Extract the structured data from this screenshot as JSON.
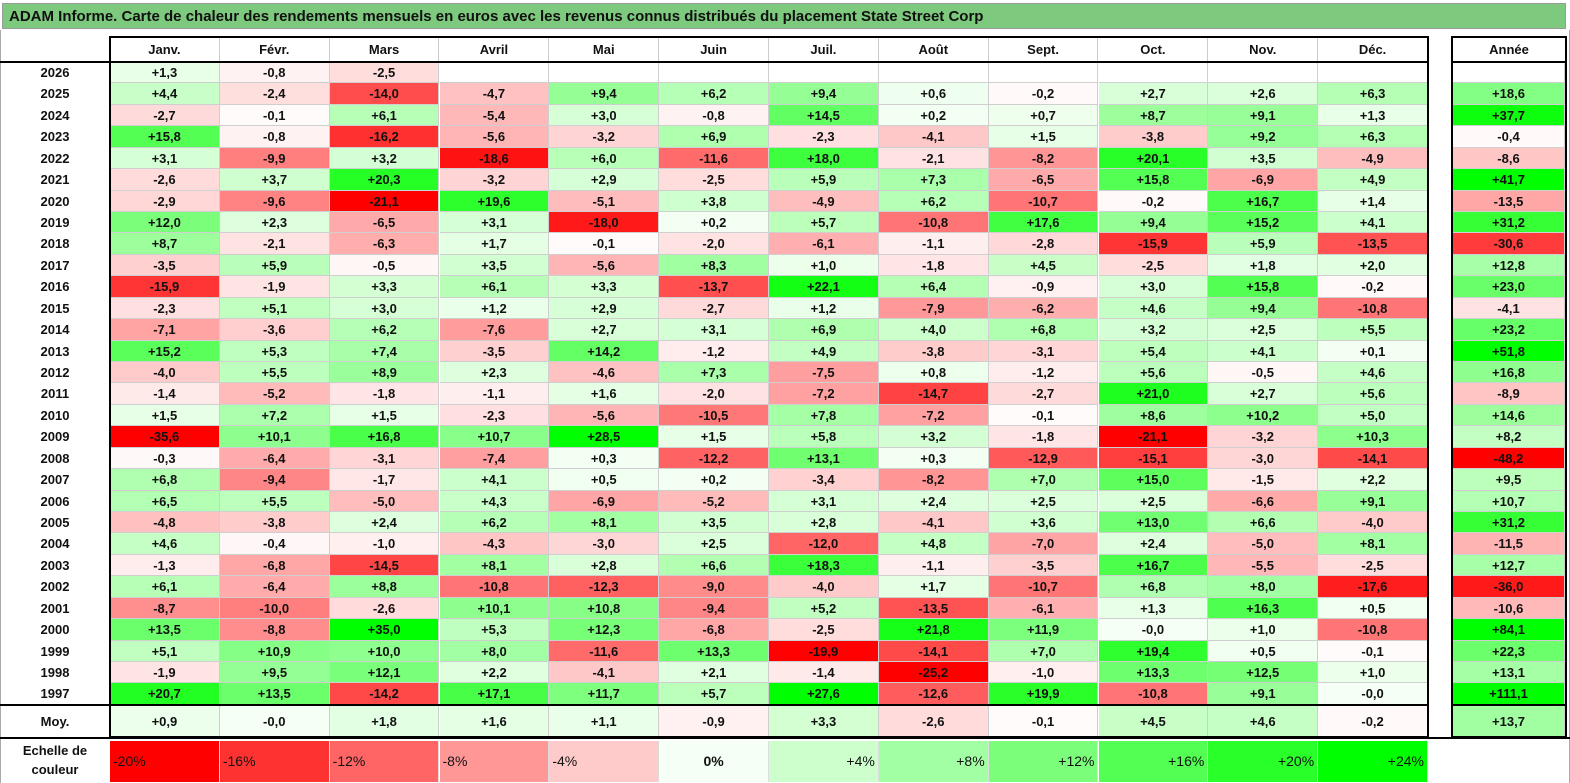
{
  "title": "ADAM Informe. Carte de chaleur des rendements mensuels en euros avec les revenus connus distribués du placement State Street Corp",
  "chart_data": {
    "type": "heatmap",
    "title": "ADAM Informe. Carte de chaleur des rendements mensuels en euros avec les revenus connus distribués du placement State Street Corp",
    "columns": [
      "Janv.",
      "Févr.",
      "Mars",
      "Avril",
      "Mai",
      "Juin",
      "Juil.",
      "Août",
      "Sept.",
      "Oct.",
      "Nov.",
      "Déc."
    ],
    "annual_header": "Année",
    "rows": [
      {
        "year": "2026",
        "values": [
          "+1,3",
          "-0,8",
          "-2,5",
          "",
          "",
          "",
          "",
          "",
          "",
          "",
          "",
          ""
        ],
        "annual": ""
      },
      {
        "year": "2025",
        "values": [
          "+4,4",
          "-2,4",
          "-14,0",
          "-4,7",
          "+9,4",
          "+6,2",
          "+9,4",
          "+0,6",
          "-0,2",
          "+2,7",
          "+2,6",
          "+6,3"
        ],
        "annual": "+18,6"
      },
      {
        "year": "2024",
        "values": [
          "-2,7",
          "-0,1",
          "+6,1",
          "-5,4",
          "+3,0",
          "-0,8",
          "+14,5",
          "+0,2",
          "+0,7",
          "+8,7",
          "+9,1",
          "+1,3"
        ],
        "annual": "+37,7"
      },
      {
        "year": "2023",
        "values": [
          "+15,8",
          "-0,8",
          "-16,2",
          "-5,6",
          "-3,2",
          "+6,9",
          "-2,3",
          "-4,1",
          "+1,5",
          "-3,8",
          "+9,2",
          "+6,3"
        ],
        "annual": "-0,4"
      },
      {
        "year": "2022",
        "values": [
          "+3,1",
          "-9,9",
          "+3,2",
          "-18,6",
          "+6,0",
          "-11,6",
          "+18,0",
          "-2,1",
          "-8,2",
          "+20,1",
          "+3,5",
          "-4,9"
        ],
        "annual": "-8,6"
      },
      {
        "year": "2021",
        "values": [
          "-2,6",
          "+3,7",
          "+20,3",
          "-3,2",
          "+2,9",
          "-2,5",
          "+5,9",
          "+7,3",
          "-6,5",
          "+15,8",
          "-6,9",
          "+4,9"
        ],
        "annual": "+41,7"
      },
      {
        "year": "2020",
        "values": [
          "-2,9",
          "-9,6",
          "-21,1",
          "+19,6",
          "-5,1",
          "+3,8",
          "-4,9",
          "+6,2",
          "-10,7",
          "-0,2",
          "+16,7",
          "+1,4"
        ],
        "annual": "-13,5"
      },
      {
        "year": "2019",
        "values": [
          "+12,0",
          "+2,3",
          "-6,5",
          "+3,1",
          "-18,0",
          "+0,2",
          "+5,7",
          "-10,8",
          "+17,6",
          "+9,4",
          "+15,2",
          "+4,1"
        ],
        "annual": "+31,2"
      },
      {
        "year": "2018",
        "values": [
          "+8,7",
          "-2,1",
          "-6,3",
          "+1,7",
          "-0,1",
          "-2,0",
          "-6,1",
          "-1,1",
          "-2,8",
          "-15,9",
          "+5,9",
          "-13,5"
        ],
        "annual": "-30,6"
      },
      {
        "year": "2017",
        "values": [
          "-3,5",
          "+5,9",
          "-0,5",
          "+3,5",
          "-5,6",
          "+8,3",
          "+1,0",
          "-1,8",
          "+4,5",
          "-2,5",
          "+1,8",
          "+2,0"
        ],
        "annual": "+12,8"
      },
      {
        "year": "2016",
        "values": [
          "-15,9",
          "-1,9",
          "+3,3",
          "+6,1",
          "+3,3",
          "-13,7",
          "+22,1",
          "+6,4",
          "-0,9",
          "+3,0",
          "+15,8",
          "-0,2"
        ],
        "annual": "+23,0"
      },
      {
        "year": "2015",
        "values": [
          "-2,3",
          "+5,1",
          "+3,0",
          "+1,2",
          "+2,9",
          "-2,7",
          "+1,2",
          "-7,9",
          "-6,2",
          "+4,6",
          "+9,4",
          "-10,8"
        ],
        "annual": "-4,1"
      },
      {
        "year": "2014",
        "values": [
          "-7,1",
          "-3,6",
          "+6,2",
          "-7,6",
          "+2,7",
          "+3,1",
          "+6,9",
          "+4,0",
          "+6,8",
          "+3,2",
          "+2,5",
          "+5,5"
        ],
        "annual": "+23,2"
      },
      {
        "year": "2013",
        "values": [
          "+15,2",
          "+5,3",
          "+7,4",
          "-3,5",
          "+14,2",
          "-1,2",
          "+4,9",
          "-3,8",
          "-3,1",
          "+5,4",
          "+4,1",
          "+0,1"
        ],
        "annual": "+51,8"
      },
      {
        "year": "2012",
        "values": [
          "-4,0",
          "+5,5",
          "+8,9",
          "+2,3",
          "-4,6",
          "+7,3",
          "-7,5",
          "+0,8",
          "-1,2",
          "+5,6",
          "-0,5",
          "+4,6"
        ],
        "annual": "+16,8"
      },
      {
        "year": "2011",
        "values": [
          "-1,4",
          "-5,2",
          "-1,8",
          "-1,1",
          "+1,6",
          "-2,0",
          "-7,2",
          "-14,7",
          "-2,7",
          "+21,0",
          "+2,7",
          "+5,6"
        ],
        "annual": "-8,9"
      },
      {
        "year": "2010",
        "values": [
          "+1,5",
          "+7,2",
          "+1,5",
          "-2,3",
          "-5,6",
          "-10,5",
          "+7,8",
          "-7,2",
          "-0,1",
          "+8,6",
          "+10,2",
          "+5,0"
        ],
        "annual": "+14,6"
      },
      {
        "year": "2009",
        "values": [
          "-35,6",
          "+10,1",
          "+16,8",
          "+10,7",
          "+28,5",
          "+1,5",
          "+5,8",
          "+3,2",
          "-1,8",
          "-21,1",
          "-3,2",
          "+10,3"
        ],
        "annual": "+8,2"
      },
      {
        "year": "2008",
        "values": [
          "-0,3",
          "-6,4",
          "-3,1",
          "-7,4",
          "+0,3",
          "-12,2",
          "+13,1",
          "+0,3",
          "-12,9",
          "-15,1",
          "-3,0",
          "-14,1"
        ],
        "annual": "-48,2"
      },
      {
        "year": "2007",
        "values": [
          "+6,8",
          "-9,4",
          "-1,7",
          "+4,1",
          "+0,5",
          "+0,2",
          "-3,4",
          "-8,2",
          "+7,0",
          "+15,0",
          "-1,5",
          "+2,2"
        ],
        "annual": "+9,5"
      },
      {
        "year": "2006",
        "values": [
          "+6,5",
          "+5,5",
          "-5,0",
          "+4,3",
          "-6,9",
          "-5,2",
          "+3,1",
          "+2,4",
          "+2,5",
          "+2,5",
          "-6,6",
          "+9,1"
        ],
        "annual": "+10,7"
      },
      {
        "year": "2005",
        "values": [
          "-4,8",
          "-3,8",
          "+2,4",
          "+6,2",
          "+8,1",
          "+3,5",
          "+2,8",
          "-4,1",
          "+3,6",
          "+13,0",
          "+6,6",
          "-4,0"
        ],
        "annual": "+31,2"
      },
      {
        "year": "2004",
        "values": [
          "+4,6",
          "-0,4",
          "-1,0",
          "-4,3",
          "-3,0",
          "+2,5",
          "-12,0",
          "+4,8",
          "-7,0",
          "+2,4",
          "-5,0",
          "+8,1"
        ],
        "annual": "-11,5"
      },
      {
        "year": "2003",
        "values": [
          "-1,3",
          "-6,8",
          "-14,5",
          "+8,1",
          "+2,8",
          "+6,6",
          "+18,3",
          "-1,1",
          "-3,5",
          "+16,7",
          "-5,5",
          "-2,5"
        ],
        "annual": "+12,7"
      },
      {
        "year": "2002",
        "values": [
          "+6,1",
          "-6,4",
          "+8,8",
          "-10,8",
          "-12,3",
          "-9,0",
          "-4,0",
          "+1,7",
          "-10,7",
          "+6,8",
          "+8,0",
          "-17,6"
        ],
        "annual": "-36,0"
      },
      {
        "year": "2001",
        "values": [
          "-8,7",
          "-10,0",
          "-2,6",
          "+10,1",
          "+10,8",
          "-9,4",
          "+5,2",
          "-13,5",
          "-6,1",
          "+1,3",
          "+16,3",
          "+0,5"
        ],
        "annual": "-10,6"
      },
      {
        "year": "2000",
        "values": [
          "+13,5",
          "-8,8",
          "+35,0",
          "+5,3",
          "+12,3",
          "-6,8",
          "-2,5",
          "+21,8",
          "+11,9",
          "-0,0",
          "+1,0",
          "-10,8"
        ],
        "annual": "+84,1"
      },
      {
        "year": "1999",
        "values": [
          "+5,1",
          "+10,9",
          "+10,0",
          "+8,0",
          "-11,6",
          "+13,3",
          "-19,9",
          "-14,1",
          "+7,0",
          "+19,4",
          "+0,5",
          "-0,1"
        ],
        "annual": "+22,3"
      },
      {
        "year": "1998",
        "values": [
          "-1,9",
          "+9,5",
          "+12,1",
          "+2,2",
          "-4,1",
          "+2,1",
          "-1,4",
          "-25,2",
          "-1,0",
          "+13,3",
          "+12,5",
          "+1,0"
        ],
        "annual": "+13,1"
      },
      {
        "year": "1997",
        "values": [
          "+20,7",
          "+13,5",
          "-14,2",
          "+17,1",
          "+11,7",
          "+5,7",
          "+27,6",
          "-12,6",
          "+19,9",
          "-10,8",
          "+9,1",
          "-0,0"
        ],
        "annual": "+111,1"
      }
    ],
    "average": {
      "label": "Moy.",
      "values": [
        "+0,9",
        "-0,0",
        "+1,8",
        "+1,6",
        "+1,1",
        "-0,9",
        "+3,3",
        "-2,6",
        "-0,1",
        "+4,5",
        "+4,6",
        "-0,2"
      ],
      "annual": "+13,7"
    },
    "scale": {
      "label": "Echelle de couleur",
      "stops": [
        "-20%",
        "-16%",
        "-12%",
        "-8%",
        "-4%",
        "0%",
        "+4%",
        "+8%",
        "+12%",
        "+16%",
        "+20%",
        "+24%"
      ]
    },
    "colors": {
      "negative": "#ff0000",
      "positive": "#00ff00",
      "neutral": "#ffffff",
      "title_bg": "#7dc97d"
    }
  }
}
